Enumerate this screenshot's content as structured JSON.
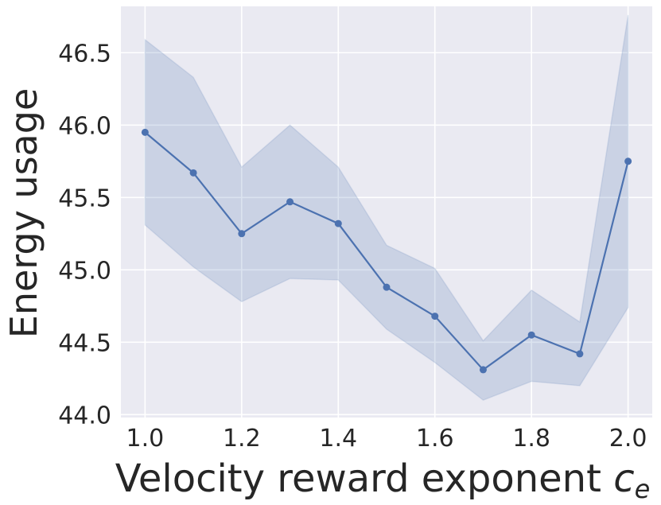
{
  "chart_data": {
    "type": "line",
    "title": "",
    "xlabel": "Velocity reward exponent",
    "xlabel_symbol": "c",
    "xlabel_subscript": "e",
    "ylabel": "Energy usage",
    "xlim": [
      0.95,
      2.05
    ],
    "ylim": [
      43.98,
      46.82
    ],
    "x_ticks": [
      1.0,
      1.2,
      1.4,
      1.6,
      1.8,
      2.0
    ],
    "x_tick_labels": [
      "1.0",
      "1.2",
      "1.4",
      "1.6",
      "1.8",
      "2.0"
    ],
    "y_ticks": [
      44.0,
      44.5,
      45.0,
      45.5,
      46.0,
      46.5
    ],
    "y_tick_labels": [
      "44.0",
      "44.5",
      "45.0",
      "45.5",
      "46.0",
      "46.5"
    ],
    "grid": true,
    "colors": {
      "line": "#4c72b0",
      "band": "#4c72b0",
      "background": "#eaeaf2",
      "grid": "#ffffff"
    },
    "series": [
      {
        "x": [
          1.0,
          1.1,
          1.2,
          1.3,
          1.4,
          1.5,
          1.6,
          1.7,
          1.8,
          1.9,
          2.0
        ],
        "y": [
          45.95,
          45.67,
          45.25,
          45.47,
          45.32,
          44.88,
          44.68,
          44.31,
          44.55,
          44.42,
          45.75
        ],
        "upper": [
          46.59,
          46.33,
          45.71,
          46.0,
          45.71,
          45.17,
          45.01,
          44.51,
          44.86,
          44.64,
          46.76
        ],
        "lower": [
          45.31,
          45.02,
          44.78,
          44.94,
          44.93,
          44.59,
          44.36,
          44.1,
          44.23,
          44.2,
          44.74
        ]
      }
    ]
  }
}
